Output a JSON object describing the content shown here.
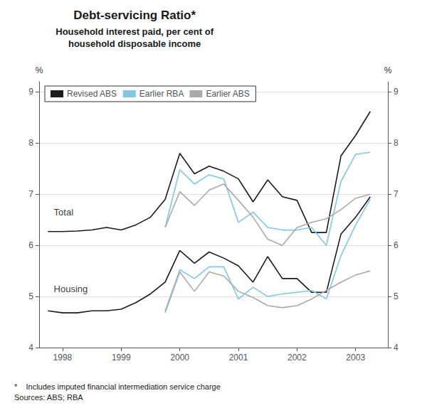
{
  "chart_data": {
    "type": "line",
    "title": "Debt-servicing Ratio*",
    "subtitle": "Household interest paid, per cent of\nhousehold disposable income",
    "ylabel": "%",
    "y2label": "%",
    "footnote": "*    Includes imputed financial intermediation service charge\nSources: ABS; RBA",
    "xlim": [
      1997.6,
      2003.55
    ],
    "xticks": [
      1998,
      1999,
      2000,
      2001,
      2002,
      2003
    ],
    "ylim": [
      4,
      9.2
    ],
    "yticks": [
      4,
      5,
      6,
      7,
      8,
      9
    ],
    "y2lim": [
      4,
      9.2
    ],
    "y2ticks": [
      4,
      5,
      6,
      7,
      8,
      9
    ],
    "grid": true,
    "legend": "upper left",
    "series": [
      {
        "name": "Revised ABS",
        "color": "#1a1a1a",
        "x": [
          1997.75,
          1998.0,
          1998.25,
          1998.5,
          1998.75,
          1999.0,
          1999.25,
          1999.5,
          1999.75,
          2000.0,
          2000.25,
          2000.5,
          2000.75,
          2001.0,
          2001.25,
          2001.5,
          2001.75,
          2002.0,
          2002.25,
          2002.5,
          2002.75,
          2003.0,
          2003.25
        ],
        "values": [
          6.27,
          6.27,
          6.28,
          6.3,
          6.35,
          6.3,
          6.4,
          6.55,
          6.9,
          7.8,
          7.4,
          7.55,
          7.45,
          7.3,
          6.85,
          7.28,
          6.95,
          6.88,
          6.25,
          6.25,
          7.75,
          8.15,
          8.62
        ]
      },
      {
        "name": "Earlier RBA",
        "color": "#7EC8E3",
        "x": [
          1999.75,
          2000.0,
          2000.25,
          2000.5,
          2000.75,
          2001.0,
          2001.25,
          2001.5,
          2001.75,
          2002.0,
          2002.25,
          2002.5,
          2002.75,
          2003.0,
          2003.25
        ],
        "values": [
          6.35,
          7.48,
          7.2,
          7.38,
          7.3,
          6.45,
          6.65,
          6.35,
          6.3,
          6.3,
          6.35,
          6.0,
          7.25,
          7.78,
          7.82
        ]
      },
      {
        "name": "Earlier ABS",
        "color": "#aaaaaa",
        "x": [
          1999.75,
          2000.0,
          2000.25,
          2000.5,
          2000.75,
          2001.0,
          2001.25,
          2001.5,
          2001.75,
          2002.0,
          2002.25,
          2002.5,
          2002.75,
          2003.0,
          2003.25
        ],
        "values": [
          6.35,
          7.05,
          6.78,
          7.08,
          7.2,
          6.88,
          6.55,
          6.12,
          6.0,
          6.35,
          6.45,
          6.52,
          6.7,
          6.92,
          7.0
        ]
      },
      {
        "name": "Revised ABS",
        "color": "#1a1a1a",
        "x": [
          1997.75,
          1998.0,
          1998.25,
          1998.5,
          1998.75,
          1999.0,
          1999.25,
          1999.5,
          1999.75,
          2000.0,
          2000.25,
          2000.5,
          2000.75,
          2001.0,
          2001.25,
          2001.5,
          2001.75,
          2002.0,
          2002.25,
          2002.5,
          2002.75,
          2003.0,
          2003.25
        ],
        "values": [
          4.72,
          4.68,
          4.68,
          4.72,
          4.72,
          4.75,
          4.88,
          5.05,
          5.28,
          5.9,
          5.65,
          5.87,
          5.75,
          5.6,
          5.28,
          5.78,
          5.35,
          5.35,
          5.08,
          5.08,
          6.22,
          6.55,
          6.95
        ]
      },
      {
        "name": "Earlier RBA",
        "color": "#7EC8E3",
        "x": [
          1999.75,
          2000.0,
          2000.25,
          2000.5,
          2000.75,
          2001.0,
          2001.25,
          2001.5,
          2001.75,
          2002.0,
          2002.25,
          2002.5,
          2002.75,
          2003.0,
          2003.25
        ],
        "values": [
          4.72,
          5.52,
          5.35,
          5.58,
          5.58,
          4.95,
          5.18,
          5.0,
          5.05,
          5.08,
          5.12,
          4.95,
          5.8,
          6.4,
          6.9
        ]
      },
      {
        "name": "Earlier ABS",
        "color": "#aaaaaa",
        "x": [
          1999.75,
          2000.0,
          2000.25,
          2000.5,
          2000.75,
          2001.0,
          2001.25,
          2001.5,
          2001.75,
          2002.0,
          2002.25,
          2002.5,
          2002.75,
          2003.0,
          2003.25
        ],
        "values": [
          4.68,
          5.48,
          5.1,
          5.48,
          5.4,
          5.1,
          4.98,
          4.82,
          4.78,
          4.82,
          4.95,
          5.12,
          5.28,
          5.42,
          5.5
        ]
      }
    ],
    "annotations": [
      {
        "text": "Total",
        "x": 1997.85,
        "y": 6.65
      },
      {
        "text": "Housing",
        "x": 1997.85,
        "y": 5.15
      }
    ]
  }
}
